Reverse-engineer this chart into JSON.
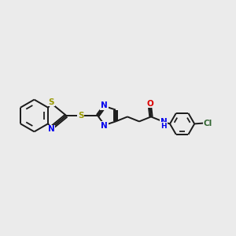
{
  "bg_color": "#ebebeb",
  "bond_color": "#1a1a1a",
  "bond_width": 1.4,
  "S_color": "#999900",
  "N_color": "#0000ee",
  "O_color": "#dd0000",
  "Cl_color": "#336633",
  "font_size": 7.5,
  "fig_width": 3.0,
  "fig_height": 3.0,
  "dpi": 100,
  "xlim": [
    0,
    10
  ],
  "ylim": [
    0,
    10
  ]
}
